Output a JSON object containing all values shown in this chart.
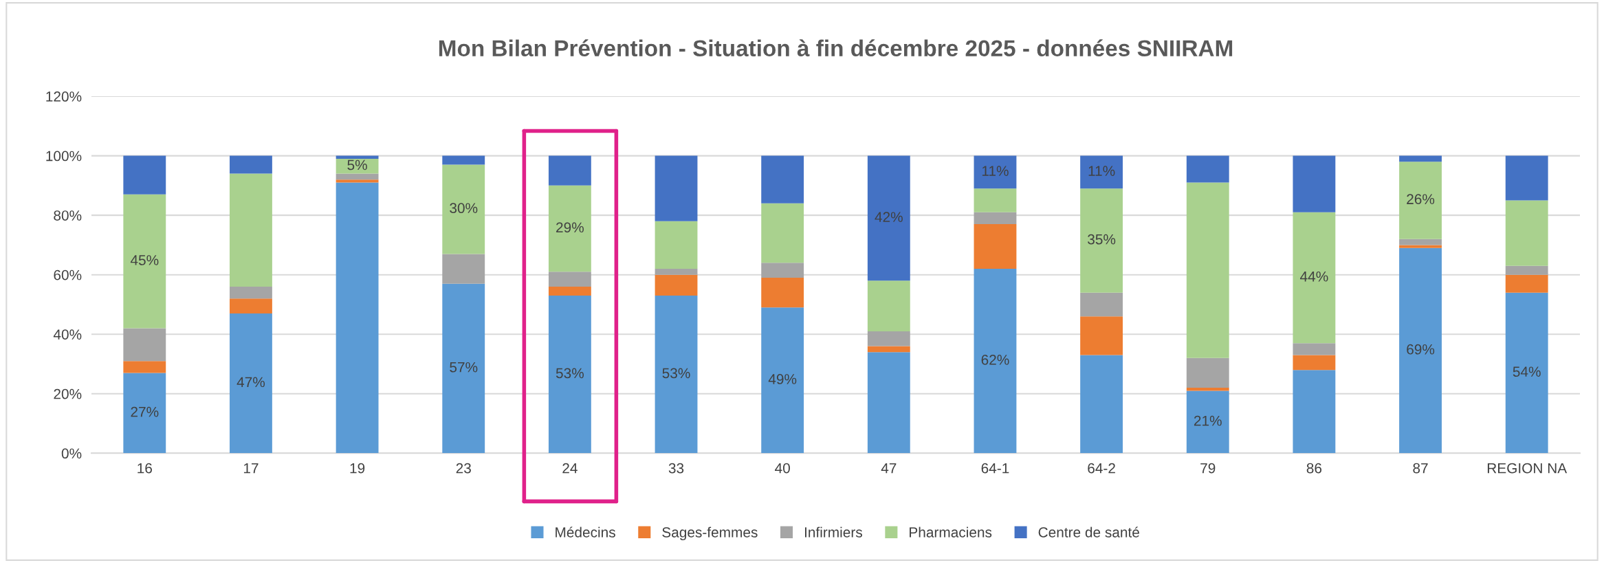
{
  "chart_data": {
    "type": "bar",
    "stacked": true,
    "title": "Mon Bilan Prévention - Situation à fin décembre 2025 - données SNIIRAM",
    "categories": [
      "16",
      "17",
      "19",
      "23",
      "24",
      "33",
      "40",
      "47",
      "64-1",
      "64-2",
      "79",
      "86",
      "87",
      "REGION NA"
    ],
    "series": [
      {
        "name": "Médecins",
        "color": "#5b9bd5",
        "values": [
          27,
          47,
          91,
          57,
          53,
          53,
          49,
          34,
          62,
          33,
          21,
          28,
          69,
          54
        ],
        "value_labels": [
          "27%",
          "47%",
          null,
          "57%",
          "53%",
          "53%",
          "49%",
          null,
          "62%",
          null,
          "21%",
          null,
          "69%",
          "54%"
        ]
      },
      {
        "name": "Sages-femmes",
        "color": "#ed7d31",
        "values": [
          4,
          5,
          1,
          0,
          3,
          7,
          10,
          2,
          15,
          13,
          1,
          5,
          1,
          6
        ]
      },
      {
        "name": "Infirmiers",
        "color": "#a5a5a5",
        "values": [
          11,
          4,
          2,
          10,
          5,
          2,
          5,
          5,
          4,
          8,
          10,
          4,
          2,
          3
        ]
      },
      {
        "name": "Pharmaciens",
        "color": "#a9d18e",
        "values": [
          45,
          38,
          5,
          30,
          29,
          16,
          20,
          17,
          8,
          35,
          59,
          44,
          26,
          22
        ],
        "value_labels": [
          "45%",
          null,
          "5%",
          "30%",
          "29%",
          null,
          null,
          null,
          null,
          "35%",
          null,
          "44%",
          "26%",
          null
        ]
      },
      {
        "name": "Centre de santé",
        "color": "#4472c4",
        "values": [
          13,
          6,
          1,
          3,
          10,
          22,
          16,
          42,
          11,
          11,
          9,
          19,
          2,
          15
        ],
        "value_labels": [
          null,
          null,
          null,
          null,
          null,
          null,
          null,
          "42%",
          "11%",
          "11%",
          null,
          null,
          null,
          null
        ]
      }
    ],
    "ylim": [
      0,
      120
    ],
    "yticks": [
      {
        "value": 0,
        "label": "0%"
      },
      {
        "value": 20,
        "label": "20%"
      },
      {
        "value": 40,
        "label": "40%"
      },
      {
        "value": 60,
        "label": "60%"
      },
      {
        "value": 80,
        "label": "80%"
      },
      {
        "value": 100,
        "label": "100%"
      },
      {
        "value": 120,
        "label": "120%"
      }
    ],
    "grid": "y",
    "legend": "bottom"
  }
}
